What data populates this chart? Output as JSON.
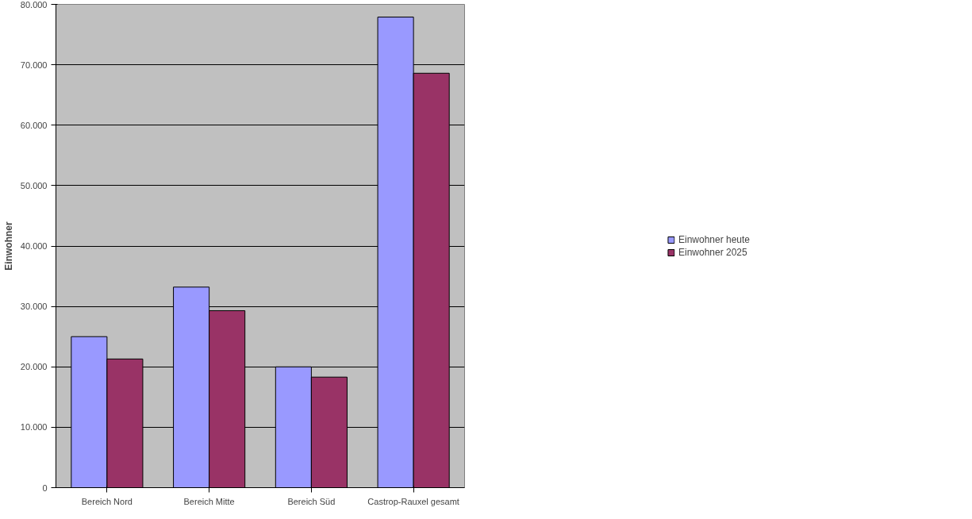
{
  "chart_data": {
    "type": "bar",
    "ylabel": "Einwohner",
    "categories": [
      "Bereich Nord",
      "Bereich Mitte",
      "Bereich Süd",
      "Castrop-Rauxel gesamt"
    ],
    "series": [
      {
        "name": "Einwohner heute",
        "color": "#9999ff",
        "values": [
          25000,
          33200,
          20000,
          77900
        ]
      },
      {
        "name": "Einwohner 2025",
        "color": "#993366",
        "values": [
          21300,
          29300,
          18300,
          68600
        ]
      }
    ],
    "ylim": [
      0,
      80000
    ],
    "yticks": [
      {
        "value": 0,
        "label": "0"
      },
      {
        "value": 10000,
        "label": "10.000"
      },
      {
        "value": 20000,
        "label": "20.000"
      },
      {
        "value": 30000,
        "label": "30.000"
      },
      {
        "value": 40000,
        "label": "40.000"
      },
      {
        "value": 50000,
        "label": "50.000"
      },
      {
        "value": 60000,
        "label": "60.000"
      },
      {
        "value": 70000,
        "label": "70.000"
      },
      {
        "value": 80000,
        "label": "80.000"
      }
    ],
    "grid": "y",
    "legend": "right"
  }
}
